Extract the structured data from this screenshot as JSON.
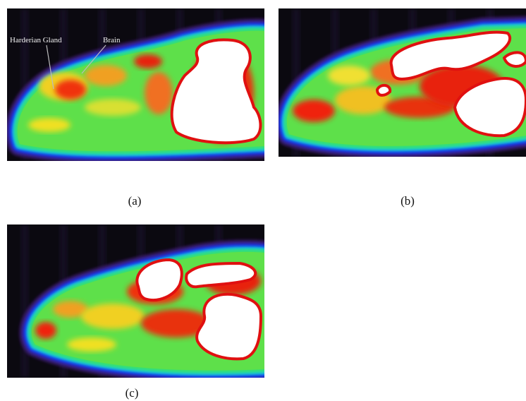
{
  "panels": [
    {
      "label": "(a)",
      "annotations": [
        "Harderian Gland",
        "Brain"
      ]
    },
    {
      "label": "(b)"
    },
    {
      "label": "(c)"
    }
  ]
}
